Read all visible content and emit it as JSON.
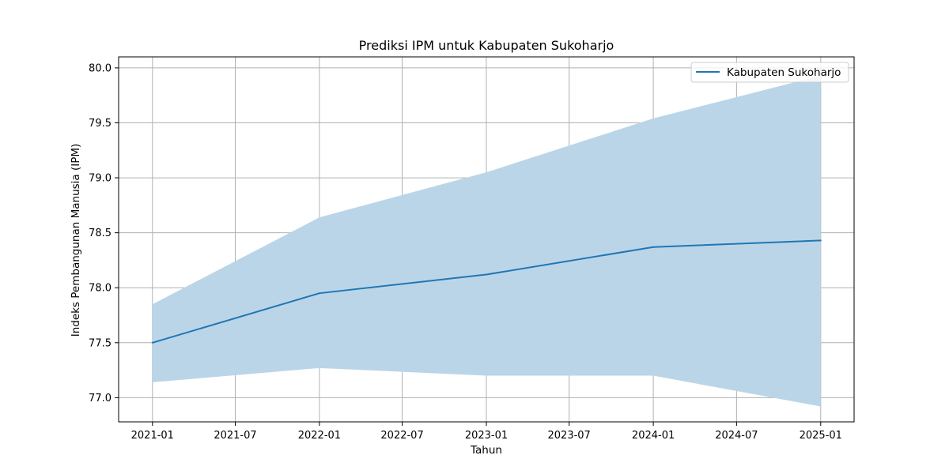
{
  "chart_data": {
    "type": "line",
    "title": "Prediksi IPM untuk Kabupaten Sukoharjo",
    "xlabel": "Tahun",
    "ylabel": "Indeks Pembangunan Manusia (IPM)",
    "x": [
      "2021-01-01",
      "2022-01-01",
      "2023-01-01",
      "2024-01-01",
      "2025-01-01"
    ],
    "series": [
      {
        "name": "Kabupaten Sukoharjo",
        "values": [
          77.5,
          77.95,
          78.12,
          78.37,
          78.43
        ],
        "lower": [
          77.14,
          77.27,
          77.2,
          77.2,
          76.92
        ],
        "upper": [
          77.85,
          78.64,
          79.05,
          79.54,
          79.93
        ],
        "color": "#1f77b4",
        "band_color": "#bbd5e8"
      }
    ],
    "xlim": [
      "2020-10-19",
      "2025-03-15"
    ],
    "ylim": [
      76.78,
      80.1
    ],
    "x_ticks": [
      "2021-01",
      "2021-07",
      "2022-01",
      "2022-07",
      "2023-01",
      "2023-07",
      "2024-01",
      "2024-07",
      "2025-01"
    ],
    "x_tick_dates": [
      "2021-01-01",
      "2021-07-01",
      "2022-01-01",
      "2022-07-01",
      "2023-01-01",
      "2023-07-01",
      "2024-01-01",
      "2024-07-01",
      "2025-01-01"
    ],
    "y_ticks": [
      77.0,
      77.5,
      78.0,
      78.5,
      79.0,
      79.5,
      80.0
    ],
    "y_tick_labels": [
      "77.0",
      "77.5",
      "78.0",
      "78.5",
      "79.0",
      "79.5",
      "80.0"
    ],
    "grid": true,
    "legend_position": "top-right",
    "colors": {
      "grid": "#b0b0b0",
      "axes": "#000000"
    }
  }
}
